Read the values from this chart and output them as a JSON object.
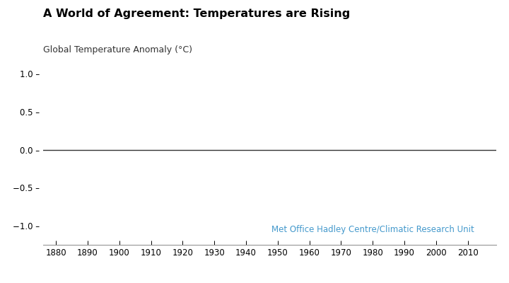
{
  "title": "A World of Agreement: Temperatures are Rising",
  "ylabel": "Global Temperature Anomaly (°C)",
  "ylim": [
    -1.25,
    1.15
  ],
  "yticks": [
    -1.0,
    -0.5,
    0.0,
    0.5,
    1.0
  ],
  "ytick_labels": [
    "−1.0 –",
    "−0.5 –",
    "0.0 –",
    "0.5 –",
    "1.0 –"
  ],
  "xlim": [
    1876,
    2019
  ],
  "xticks": [
    1880,
    1890,
    1900,
    1910,
    1920,
    1930,
    1940,
    1950,
    1960,
    1970,
    1980,
    1990,
    2000,
    2010
  ],
  "baseline_y": 0.0,
  "baseline_color": "#333333",
  "annotation_text": "Met Office Hadley Centre/Climatic Research Unit",
  "annotation_color": "#4499cc",
  "background_color": "#ffffff",
  "title_fontsize": 11.5,
  "label_fontsize": 9,
  "tick_fontsize": 8.5,
  "annotation_fontsize": 8.5
}
